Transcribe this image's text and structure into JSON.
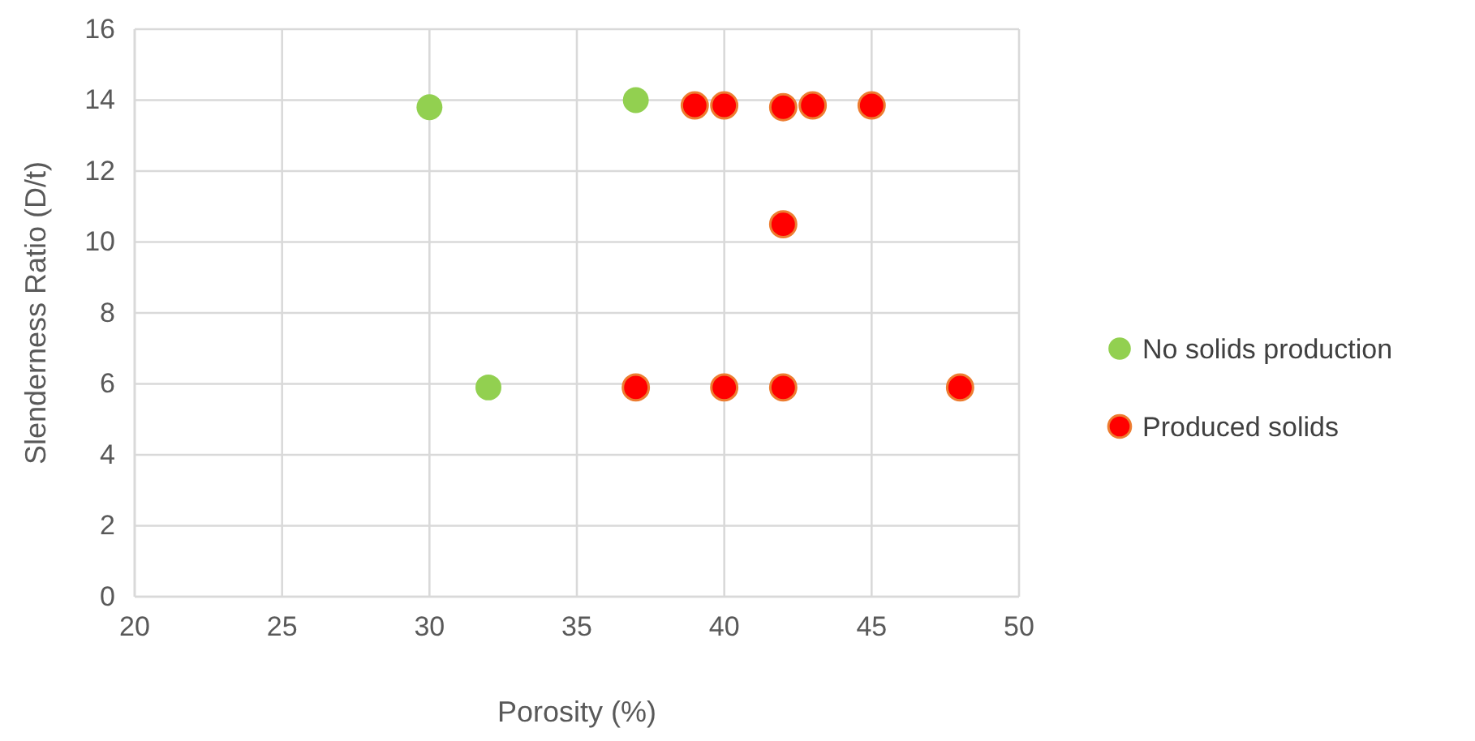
{
  "chart_data": {
    "type": "scatter",
    "xlabel": "Porosity (%)",
    "ylabel": "Slenderness Ratio (D/t)",
    "xlim": [
      20,
      50
    ],
    "xticks": [
      20,
      25,
      30,
      35,
      40,
      45,
      50
    ],
    "ylim": [
      0,
      16
    ],
    "yticks": [
      0,
      2,
      4,
      6,
      8,
      10,
      12,
      14,
      16
    ],
    "grid": true,
    "legend": "right",
    "marker": "circle",
    "series": [
      {
        "name": "No solids production",
        "color": "#92d050",
        "x": [
          30,
          37,
          32
        ],
        "values": [
          13.8,
          14,
          5.9
        ]
      },
      {
        "name": "Produced solids",
        "color": "#ff0000",
        "x": [
          39,
          40,
          42,
          43,
          45,
          42,
          37,
          40,
          42,
          48
        ],
        "values": [
          13.85,
          13.85,
          13.8,
          13.85,
          13.85,
          10.5,
          5.9,
          5.9,
          5.9,
          5.9
        ]
      }
    ]
  }
}
